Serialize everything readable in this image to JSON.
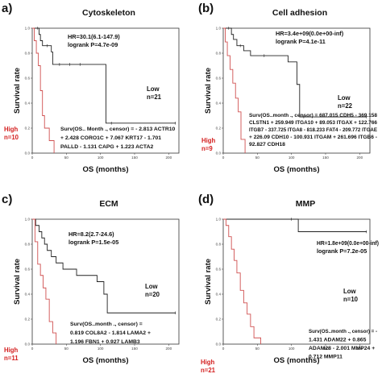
{
  "theme": {
    "low_color": "#222222",
    "high_color": "#d05050",
    "axis_color": "#333333",
    "high_text_color": "#d42020"
  },
  "chart_data": [
    {
      "type": "line",
      "panel_letter": "a)",
      "title": "Cytoskeleton",
      "xlabel": "OS (months)",
      "ylabel": "Survival rate",
      "xlim": [
        0,
        215
      ],
      "ylim": [
        0,
        1.0
      ],
      "x_ticks": [
        "0",
        "50",
        "100",
        "150",
        "200"
      ],
      "y_ticks": [
        "0.0",
        "0.2",
        "0.4",
        "0.6",
        "0.8",
        "1.0"
      ],
      "stats": [
        "HR=30.1(6.1-147.9)",
        "logrank P=4.7e-09"
      ],
      "low_label": [
        "Low",
        "n=21"
      ],
      "high_label": [
        "High",
        "n=10"
      ],
      "equation": [
        "Surv(OS.. Month ., censor) = - 2.813 ACTR10",
        "+ 2.428 CORO1C + 7.067 KRT17 - 1.701",
        "PALLD - 1.131 CAPG + 1.223 ACTA2"
      ],
      "series": [
        {
          "name": "Low",
          "x": [
            0,
            8,
            10,
            12,
            15,
            22,
            28,
            30,
            40,
            55,
            70,
            108,
            116,
            210
          ],
          "y": [
            1.0,
            1.0,
            0.95,
            0.9,
            0.86,
            0.86,
            0.81,
            0.71,
            0.71,
            0.71,
            0.71,
            0.24,
            0.24,
            0.24
          ]
        },
        {
          "name": "High",
          "x": [
            0,
            3,
            6,
            9,
            12,
            15,
            18,
            25,
            32
          ],
          "y": [
            1.0,
            0.9,
            0.8,
            0.7,
            0.5,
            0.3,
            0.2,
            0.1,
            0.0
          ]
        }
      ]
    },
    {
      "type": "line",
      "panel_letter": "(b)",
      "title": "Cell adhesion",
      "xlabel": "OS (months)",
      "ylabel": "Survival rate",
      "xlim": [
        0,
        215
      ],
      "ylim": [
        0,
        1.0
      ],
      "x_ticks": [
        "0",
        "50",
        "100",
        "150",
        "200"
      ],
      "y_ticks": [
        "0.0",
        "0.2",
        "0.4",
        "0.6",
        "0.8",
        "1.0"
      ],
      "stats": [
        "HR=3.4e+09(0.0e+00-inf)",
        "logrank P=4.1e-11"
      ],
      "low_label": [
        "Low",
        "n=22"
      ],
      "high_label": [
        "High",
        "n=9"
      ],
      "equation": [
        "Surv(OS..month ., censor) = 687.015 CDH5 - 369.158",
        "CLSTN1 + 259.949 ITGA10 + 89.053 ITGAX + 122.766",
        "ITGB7 - 337.725 ITGA8 - 818.233 FAT4 - 209.772 ITGAE",
        "+ 226.09 CDH10 - 100.931 ITGAM + 261.696 ITGB6 -",
        "92.827 CDH18"
      ],
      "series": [
        {
          "name": "Low",
          "x": [
            0,
            8,
            12,
            15,
            20,
            25,
            30,
            40,
            60,
            95,
            108,
            112,
            118,
            210
          ],
          "y": [
            1.0,
            1.0,
            0.95,
            0.91,
            0.86,
            0.86,
            0.82,
            0.78,
            0.78,
            0.73,
            0.55,
            0.29,
            0.29,
            0.29
          ]
        },
        {
          "name": "High",
          "x": [
            0,
            3,
            6,
            10,
            14,
            18,
            22,
            26,
            32
          ],
          "y": [
            1.0,
            0.89,
            0.78,
            0.67,
            0.56,
            0.44,
            0.33,
            0.11,
            0.0
          ]
        }
      ]
    },
    {
      "type": "line",
      "panel_letter": "c)",
      "title": "ECM",
      "xlabel": "OS (months)",
      "ylabel": "Survival rate",
      "xlim": [
        0,
        215
      ],
      "ylim": [
        0,
        1.0
      ],
      "x_ticks": [
        "0",
        "50",
        "100",
        "150",
        "200"
      ],
      "y_ticks": [
        "0.0",
        "0.2",
        "0.4",
        "0.6",
        "0.8",
        "1.0"
      ],
      "stats": [
        "HR=8.2(2.7-24.6)",
        "logrank P=1.5e-05"
      ],
      "low_label": [
        "Low",
        "n=20"
      ],
      "high_label": [
        "High",
        "n=11"
      ],
      "equation": [
        "Surv(OS..month ., censor) =",
        "0.819 COL8A2 - 1.814 LAMA2 +",
        "1.196 FBN1 + 0.927 LAMB3"
      ],
      "series": [
        {
          "name": "Low",
          "x": [
            0,
            5,
            10,
            14,
            18,
            22,
            28,
            35,
            45,
            65,
            95,
            105,
            110,
            210
          ],
          "y": [
            1.0,
            0.95,
            0.9,
            0.85,
            0.8,
            0.75,
            0.7,
            0.65,
            0.6,
            0.55,
            0.5,
            0.4,
            0.25,
            0.25
          ]
        },
        {
          "name": "High",
          "x": [
            0,
            4,
            8,
            12,
            16,
            20,
            25,
            30,
            35
          ],
          "y": [
            1.0,
            0.82,
            0.64,
            0.55,
            0.45,
            0.36,
            0.18,
            0.09,
            0.0
          ]
        }
      ]
    },
    {
      "type": "line",
      "panel_letter": "(d)",
      "title": "MMP",
      "xlabel": "OS (months)",
      "ylabel": "Survival rate",
      "xlim": [
        0,
        215
      ],
      "ylim": [
        0,
        1.0
      ],
      "x_ticks": [
        "0",
        "50",
        "100",
        "150",
        "200"
      ],
      "y_ticks": [
        "0.0",
        "0.2",
        "0.4",
        "0.6",
        "0.8",
        "1.0"
      ],
      "stats": [
        "HR=1.8e+09(0.0e+00-inf)",
        "logrank P=7.2e-05"
      ],
      "low_label": [
        "Low",
        "n=10"
      ],
      "high_label": [
        "High",
        "n=21"
      ],
      "equation": [
        "Surv(OS..month ., censor) = -",
        "1.431 ADAM22 + 0.865",
        "ADAM28 - 2.001 MMP24 +",
        "0.712 MMP11"
      ],
      "series": [
        {
          "name": "Low",
          "x": [
            0,
            100,
            110,
            210
          ],
          "y": [
            1.0,
            1.0,
            0.9,
            0.9
          ]
        },
        {
          "name": "High",
          "x": [
            0,
            4,
            8,
            12,
            16,
            20,
            25,
            30,
            35,
            40,
            45,
            55
          ],
          "y": [
            1.0,
            0.95,
            0.86,
            0.76,
            0.67,
            0.57,
            0.43,
            0.33,
            0.24,
            0.14,
            0.05,
            0.0
          ]
        }
      ]
    }
  ]
}
